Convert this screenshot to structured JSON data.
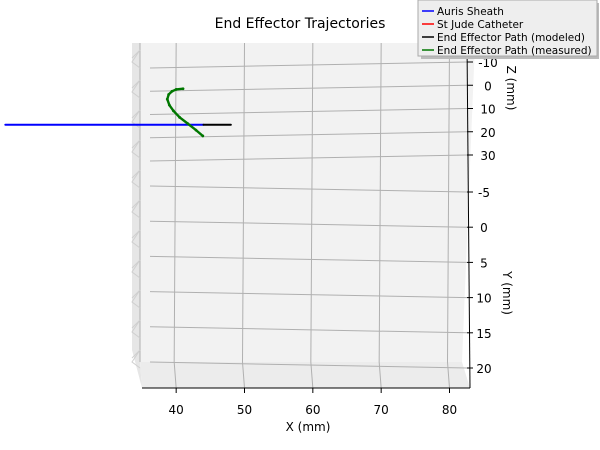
{
  "chart_data": {
    "type": "line",
    "projection": "3d",
    "title": "End Effector Trajectories",
    "xlabel": "X (mm)",
    "ylabel": "Y (mm)",
    "zlabel": "Z (mm)",
    "xticks": [
      40,
      50,
      60,
      70,
      80
    ],
    "yticks": [
      -5,
      0,
      5,
      10,
      15,
      20
    ],
    "zticks": [
      -10,
      0,
      10,
      20,
      30
    ],
    "xlim": [
      35,
      83
    ],
    "ylim": [
      -9,
      22
    ],
    "zlim": [
      -12,
      32
    ],
    "grid": true,
    "legend_position": "top-right",
    "series": [
      {
        "name": "Auris Sheath",
        "color": "#0000ff",
        "x": [
          15,
          44
        ],
        "y": [
          0,
          0
        ],
        "z": [
          17,
          17
        ]
      },
      {
        "name": "St Jude Catheter",
        "color": "#ff0000",
        "x": [],
        "y": [],
        "z": []
      },
      {
        "name": "End Effector Path (modeled)",
        "color": "#000000",
        "x": [
          44,
          48
        ],
        "y": [
          0,
          0
        ],
        "z": [
          17,
          17
        ]
      },
      {
        "name": "End Effector Path (measured)",
        "color": "#007700",
        "x": [
          41.0,
          40.0,
          39.4,
          38.9,
          38.7,
          39.0,
          39.6,
          40.5,
          41.7,
          42.9,
          43.9
        ],
        "y": [
          0,
          0,
          0,
          0,
          0,
          0,
          0,
          0,
          0,
          0,
          0
        ],
        "z": [
          1.5,
          1.8,
          2.6,
          4.0,
          6.0,
          8.5,
          11.0,
          13.8,
          16.5,
          19.3,
          21.8
        ]
      }
    ]
  }
}
